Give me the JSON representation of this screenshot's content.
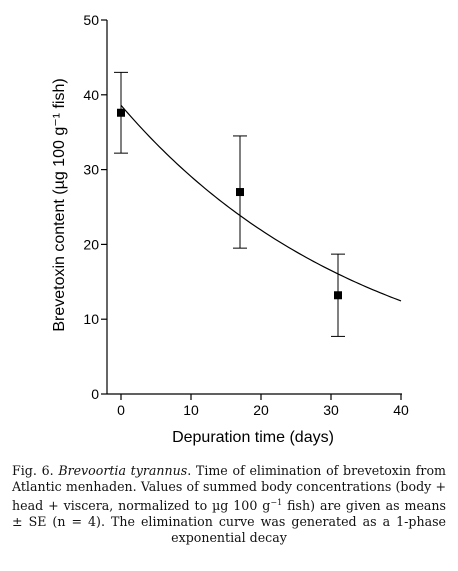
{
  "chart_data": {
    "type": "scatter",
    "xlabel": "Depuration time (days)",
    "ylabel": "Brevetoxin content (µg 100 g⁻¹ fish)",
    "xlim": [
      0,
      40
    ],
    "ylim": [
      0,
      50
    ],
    "xticks": [
      0,
      10,
      20,
      30,
      40
    ],
    "yticks": [
      0,
      10,
      20,
      30,
      40,
      50
    ],
    "grid": false,
    "points": [
      {
        "x": 0,
        "y": 37.6,
        "err": 5.4
      },
      {
        "x": 17,
        "y": 27.0,
        "err": 7.5
      },
      {
        "x": 31,
        "y": 13.2,
        "err": 5.5
      }
    ],
    "fit": {
      "model": "1-phase exponential decay",
      "y0": 38.6,
      "k": 0.0283,
      "x_range": [
        0,
        40
      ]
    }
  },
  "caption": {
    "fig_label": "Fig. 6.",
    "species": "Brevoortia tyrannus",
    "text_part1": ". Time of elimination of brevetoxin from Atlantic menhaden. Values of summed body concentrations (body + head + viscera, normalized to µg 100 g",
    "superscript": "−1",
    "text_part2": " fish) are given as means ± SE (n = 4). The elimination curve was generated as a 1-phase exponential decay"
  }
}
